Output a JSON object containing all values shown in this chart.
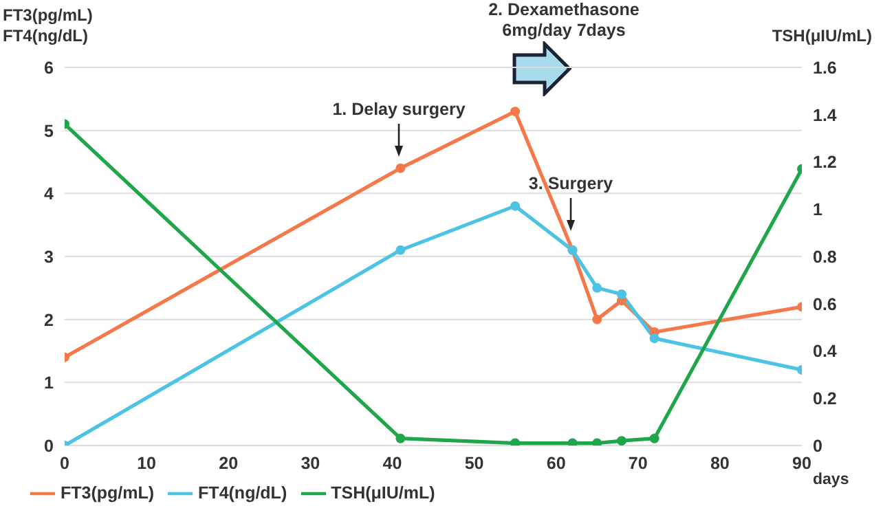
{
  "chart_data": {
    "type": "line",
    "ylabel": "FT3(pg/mL)\nFT4(ng/dL)",
    "y2label": "TSH(μIU/mL)",
    "xlabel": "days",
    "x": [
      0,
      41,
      55,
      62,
      65,
      68,
      72,
      90
    ],
    "series": [
      {
        "name": "FT3(pg/mL)",
        "color": "#f4784a",
        "values": [
          1.4,
          4.4,
          5.3,
          3.1,
          2.0,
          2.3,
          1.8,
          2.2
        ]
      },
      {
        "name": "FT4(ng/dL)",
        "color": "#4dc3e4",
        "values": [
          0,
          3.1,
          3.8,
          3.1,
          2.5,
          2.4,
          1.7,
          1.2
        ]
      },
      {
        "name": "TSH(μIU/mL)",
        "color": "#1fa64a",
        "axis": "y2",
        "values": [
          1.36,
          0.03,
          0.01,
          0.01,
          0.01,
          0.02,
          0.03,
          1.17
        ]
      }
    ],
    "xlim": [
      0,
      90
    ],
    "xticks": [
      0,
      10,
      20,
      30,
      40,
      50,
      60,
      70,
      80,
      90
    ],
    "ylim": [
      0,
      6
    ],
    "yticks": [
      0,
      1,
      2,
      3,
      4,
      5,
      6
    ],
    "y2lim": [
      0,
      1.6
    ],
    "y2ticks": [
      0,
      0.2,
      0.4,
      0.6,
      0.8,
      1,
      1.2,
      1.4,
      1.6
    ],
    "annotations": [
      "1. Delay surgery",
      "2. Dexamethasone\n6mg/day 7days",
      "3. Surgery"
    ],
    "grid": "y",
    "legend": "bottom left",
    "marker": "circle",
    "line_style": "solid"
  }
}
